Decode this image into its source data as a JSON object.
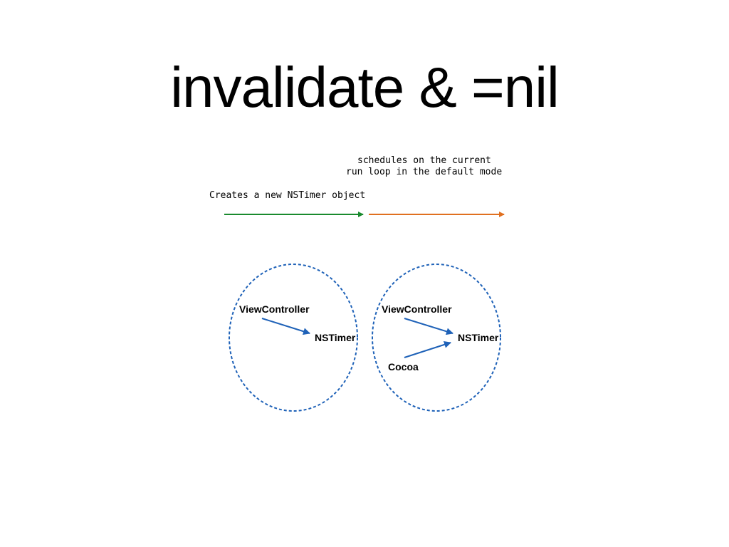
{
  "title": "invalidate & =nil",
  "labels": {
    "schedules_line1": "schedules on the current",
    "schedules_line2": "run loop in the default mode",
    "creates": "Creates a new NSTimer object"
  },
  "left_cluster": {
    "view_controller": "ViewController",
    "ns_timer": "NSTimer"
  },
  "right_cluster": {
    "view_controller": "ViewController",
    "ns_timer": "NSTimer",
    "cocoa": "Cocoa"
  },
  "colors": {
    "create_arrow": "#1a8a2e",
    "schedule_arrow": "#e07020",
    "reference_arrow": "#1f62b8",
    "scope_outline": "#1f62b8"
  }
}
